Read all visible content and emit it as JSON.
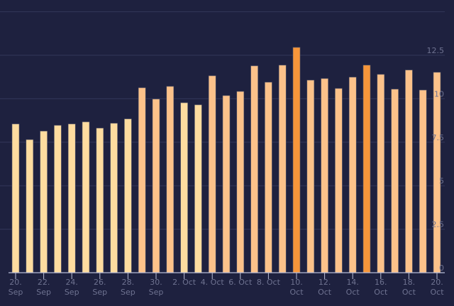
{
  "chart_data": {
    "type": "bar",
    "categories": [
      "20. Sep",
      "21. Sep",
      "22. Sep",
      "23. Sep",
      "24. Sep",
      "25. Sep",
      "26. Sep",
      "27. Sep",
      "28. Sep",
      "29. Sep",
      "30. Sep",
      "1. Oct",
      "2. Oct",
      "3. Oct",
      "4. Oct",
      "5. Oct",
      "6. Oct",
      "7. Oct",
      "8. Oct",
      "9. Oct",
      "10. Oct",
      "11. Oct",
      "12. Oct",
      "13. Oct",
      "14. Oct",
      "15. Oct",
      "16. Oct",
      "17. Oct",
      "18. Oct",
      "19. Oct",
      "20. Oct"
    ],
    "values": [
      8.55,
      7.65,
      8.14,
      8.47,
      8.55,
      8.67,
      8.31,
      8.59,
      8.84,
      10.63,
      9.98,
      10.71,
      9.77,
      9.65,
      11.32,
      10.18,
      10.42,
      11.89,
      10.95,
      11.93,
      12.95,
      11.07,
      11.16,
      10.59,
      11.24,
      11.93,
      11.4,
      10.55,
      11.65,
      10.5,
      11.52
    ],
    "bar_colors": [
      "#fedc9f",
      "#fedc9f",
      "#fedc9f",
      "#fedc9f",
      "#fedc9f",
      "#fedc9f",
      "#fedc9f",
      "#fedc9f",
      "#fedc9f",
      "#fcc28a",
      "#fcc28a",
      "#fcc28a",
      "#fedc9f",
      "#fedc9f",
      "#fcc28a",
      "#fcc28a",
      "#fcc28a",
      "#fcc28a",
      "#fcc28a",
      "#fcc28a",
      "#f7963a",
      "#fcc28a",
      "#fcc28a",
      "#fcc28a",
      "#fcc28a",
      "#f7963a",
      "#fcc28a",
      "#fcc28a",
      "#fcc28a",
      "#fcc28a",
      "#fcc28a"
    ],
    "x_tick_labels": [
      [
        "20.",
        "Sep"
      ],
      [
        "22.",
        "Sep"
      ],
      [
        "24.",
        "Sep"
      ],
      [
        "26.",
        "Sep"
      ],
      [
        "28.",
        "Sep"
      ],
      [
        "30.",
        "Sep"
      ],
      [
        "2. Oct",
        ""
      ],
      [
        "4. Oct",
        ""
      ],
      [
        "6. Oct",
        ""
      ],
      [
        "8. Oct",
        ""
      ],
      [
        "10.",
        "Oct"
      ],
      [
        "12.",
        "Oct"
      ],
      [
        "14.",
        "Oct"
      ],
      [
        "16.",
        "Oct"
      ],
      [
        "18.",
        "Oct"
      ],
      [
        "20.",
        "Oct"
      ]
    ],
    "y_ticks": [
      "0",
      "2.5",
      "5",
      "7.5",
      "10",
      "12.5"
    ],
    "y_tick_values": [
      0,
      2.5,
      5,
      7.5,
      10,
      12.5
    ],
    "ylim": [
      0,
      15
    ],
    "grid": true,
    "y_axis_side": "right",
    "title": "",
    "xlabel": "",
    "ylabel": "",
    "colors": {
      "background": "#1e213f",
      "grid": "#33375a",
      "axis": "#b8bdd6",
      "tick_text": "#6e7290"
    }
  }
}
